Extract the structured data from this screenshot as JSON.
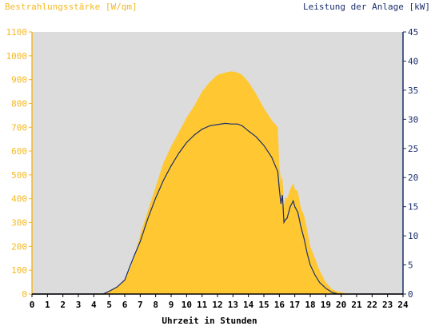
{
  "chart_data": {
    "type": "area",
    "left_axis_title": "Bestrahlungsstärke [W/qm]",
    "right_axis_title": "Leistung der Anlage [kW]",
    "xlabel": "Uhrzeit in Stunden",
    "xlim": [
      0,
      24
    ],
    "x_ticks": [
      "0",
      "1",
      "2",
      "3",
      "4",
      "5",
      "6",
      "7",
      "8",
      "9",
      "10",
      "11",
      "12",
      "13",
      "14",
      "15",
      "16",
      "17",
      "18",
      "19",
      "20",
      "21",
      "22",
      "23",
      "24"
    ],
    "ylim_left": [
      0,
      1100
    ],
    "ylim_right": [
      0,
      45
    ],
    "y_ticks_left": [
      "0",
      "100",
      "200",
      "300",
      "400",
      "500",
      "600",
      "700",
      "800",
      "900",
      "1000",
      "1100"
    ],
    "y_ticks_right": [
      "0",
      "5",
      "10",
      "15",
      "20",
      "25",
      "30",
      "35",
      "40",
      "45"
    ],
    "grid": false,
    "colors": {
      "plot_background": "#dcdcdc",
      "irradiance": "#ffc832",
      "power_line": "#1a2e6b",
      "left_axis": "#f5b820",
      "right_axis": "#1a2e6b"
    },
    "series": [
      {
        "axis": "left",
        "type": "area",
        "x": [
          0,
          4.6,
          5,
          5.5,
          6,
          6.3,
          6.6,
          7,
          7.5,
          8,
          8.5,
          9,
          9.5,
          10,
          10.5,
          11,
          11.5,
          12,
          12.5,
          12.9,
          13.3,
          13.6,
          14,
          14.5,
          15,
          15.5,
          15.9,
          16,
          16.1,
          16.2,
          16.3,
          16.4,
          16.5,
          16.7,
          16.9,
          17,
          17.2,
          17.4,
          17.6,
          17.8,
          18,
          18.3,
          18.6,
          19,
          19.4,
          19.8,
          20,
          20.2,
          20.4,
          24
        ],
        "values": [
          0,
          0,
          12,
          30,
          60,
          100,
          150,
          250,
          350,
          450,
          550,
          620,
          680,
          740,
          790,
          850,
          890,
          920,
          930,
          935,
          930,
          920,
          890,
          840,
          780,
          730,
          700,
          540,
          480,
          490,
          370,
          410,
          400,
          440,
          465,
          440,
          430,
          360,
          330,
          270,
          200,
          150,
          100,
          50,
          20,
          10,
          8,
          5,
          0,
          0
        ]
      },
      {
        "axis": "right",
        "type": "line",
        "x": [
          0,
          4.6,
          5,
          5.5,
          6,
          6.3,
          6.6,
          7,
          7.5,
          8,
          8.5,
          9,
          9.5,
          10,
          10.5,
          11,
          11.5,
          12,
          12.5,
          12.9,
          13.3,
          13.6,
          14,
          14.5,
          15,
          15.5,
          15.9,
          16,
          16.1,
          16.2,
          16.3,
          16.4,
          16.5,
          16.7,
          16.9,
          17,
          17.2,
          17.4,
          17.6,
          17.8,
          18,
          18.3,
          18.6,
          19,
          19.4,
          19.8,
          20,
          20.2,
          24
        ],
        "values": [
          0,
          0,
          0.5,
          1.2,
          2.4,
          4.5,
          6.5,
          9.0,
          13.0,
          16.5,
          19.5,
          22.0,
          24.2,
          26.0,
          27.3,
          28.3,
          28.9,
          29.1,
          29.3,
          29.2,
          29.2,
          28.9,
          28.0,
          27.0,
          25.5,
          23.5,
          21.0,
          18.0,
          15.5,
          17.0,
          12.3,
          12.8,
          13.0,
          15.0,
          16.0,
          15.0,
          14.0,
          11.5,
          9.5,
          7.0,
          5.0,
          3.3,
          2.0,
          1.0,
          0.3,
          0,
          0,
          0,
          0
        ]
      }
    ]
  }
}
